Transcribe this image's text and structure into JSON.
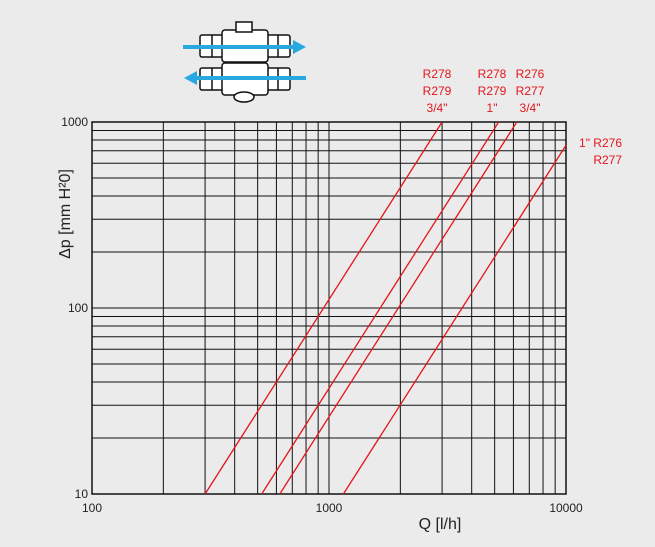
{
  "chart_data": {
    "type": "line",
    "xlabel": "Q [l/h]",
    "ylabel": "Δp [mm H²0]",
    "xscale": "log",
    "yscale": "log",
    "xlim": [
      100,
      10000
    ],
    "ylim": [
      10,
      1000
    ],
    "grid": true,
    "x_ticks": [
      "100",
      "1000",
      "10000"
    ],
    "y_ticks": [
      "10",
      "100",
      "1000"
    ],
    "line_color": "#e3161b",
    "series": [
      {
        "label_lines": [
          "R278",
          "R279",
          "3/4\""
        ],
        "x": [
          300,
          3000
        ],
        "y": [
          10,
          1000
        ]
      },
      {
        "label_lines": [
          "R278",
          "R279",
          "1\""
        ],
        "x": [
          520,
          5200
        ],
        "y": [
          10,
          1000
        ]
      },
      {
        "label_lines": [
          "R276",
          "R277",
          "3/4\""
        ],
        "x": [
          620,
          6200
        ],
        "y": [
          10,
          1000
        ]
      },
      {
        "label_lines": [
          "1\"  R276",
          "R277"
        ],
        "x": [
          1150,
          10000
        ],
        "y": [
          10,
          750
        ]
      }
    ]
  },
  "icons": {
    "valve": "ball-valve-flow-icon",
    "flow_arrow_color": "#29a8e0"
  }
}
